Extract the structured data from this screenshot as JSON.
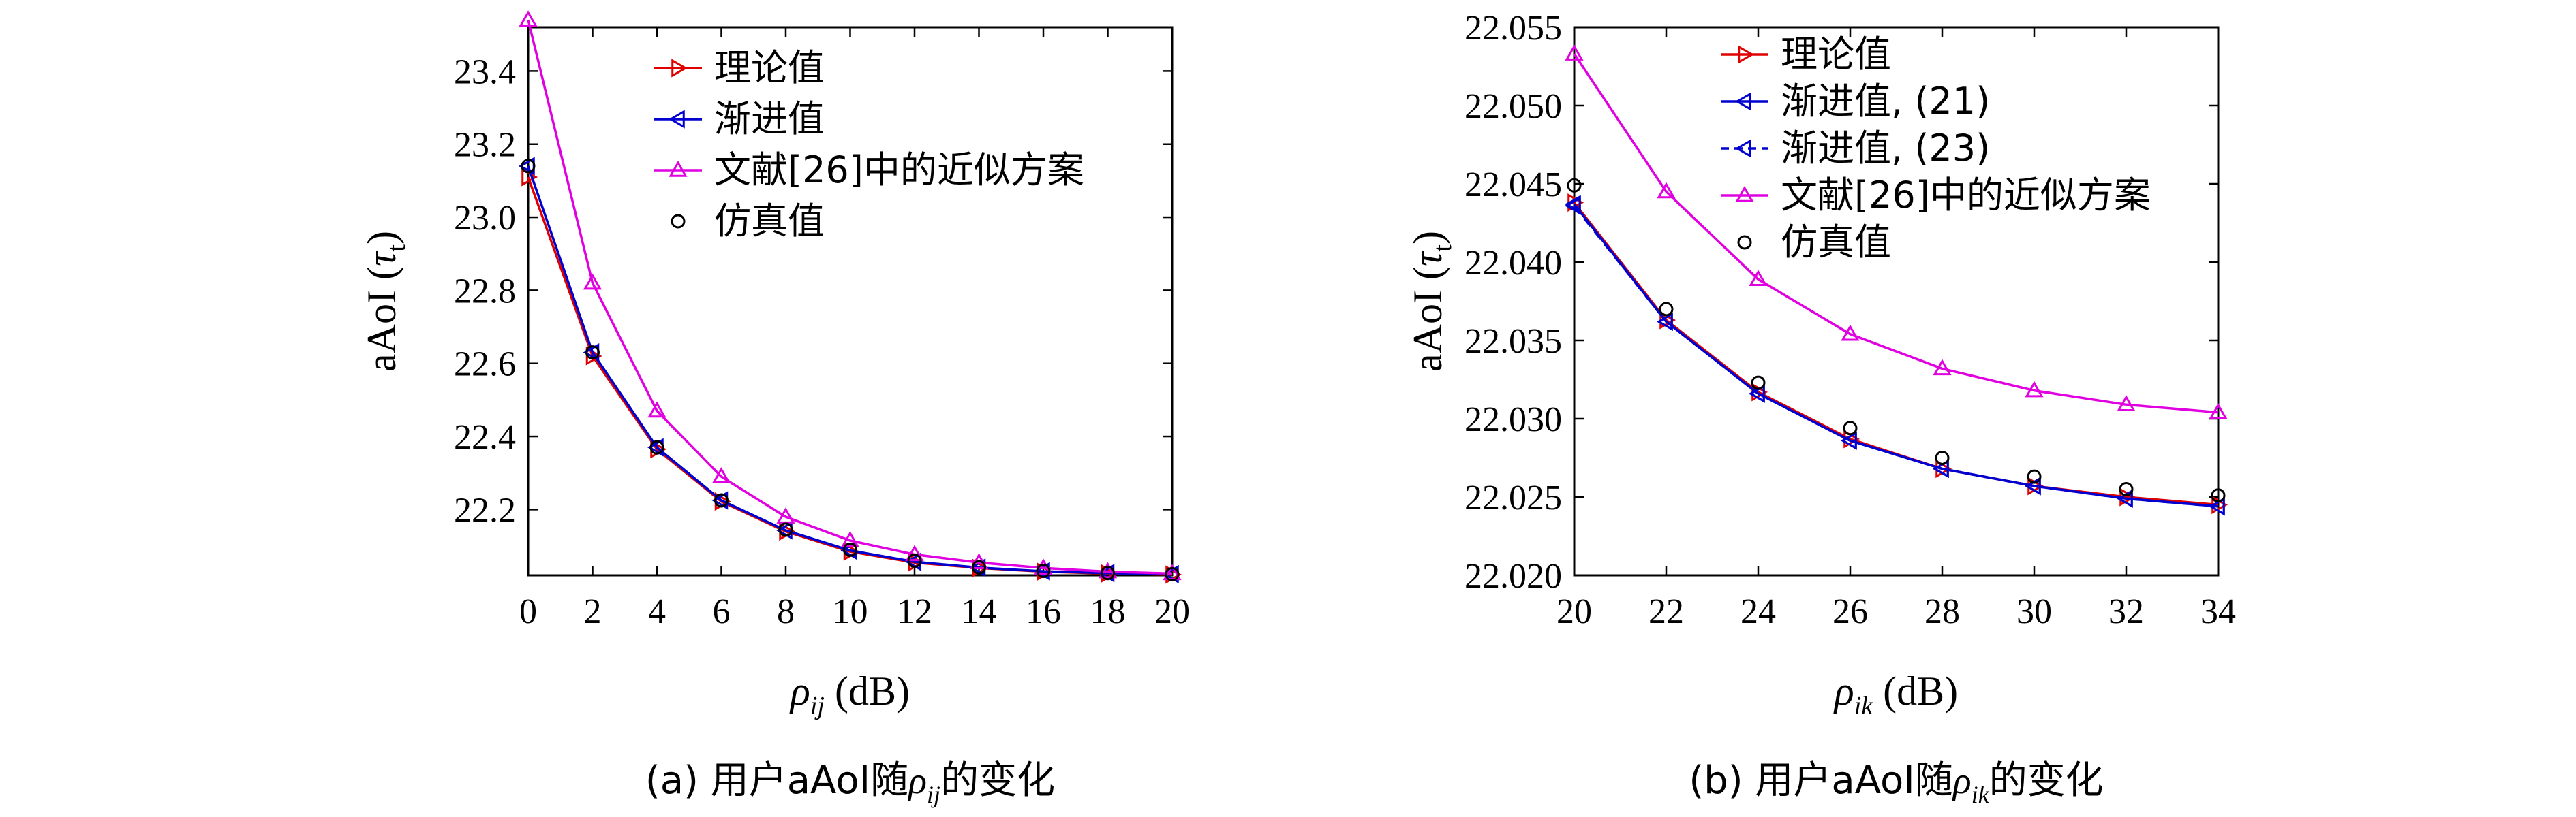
{
  "colors": {
    "theory": "#e00000",
    "asymptotic": "#0000d0",
    "reference": "#e000e0",
    "simulation": "#000000"
  },
  "chart_data": [
    {
      "type": "line",
      "caption_pre": "(a) 用户aAoI随",
      "caption_sym": "ρ",
      "caption_sub": "ij",
      "caption_post": "的变化",
      "xlabel_sym": "ρ",
      "xlabel_sub": "ij",
      "xlabel_unit": " (dB)",
      "ylabel_main": "aAoI (",
      "ylabel_sym": "τ",
      "ylabel_sub": "t",
      "ylabel_end": ")",
      "xlim": [
        0,
        20
      ],
      "ylim": [
        22.02,
        23.52
      ],
      "xticks": [
        0,
        2,
        4,
        6,
        8,
        10,
        12,
        14,
        16,
        18,
        20
      ],
      "yticks": [
        22.2,
        22.4,
        22.6,
        22.8,
        23.0,
        23.2,
        23.4
      ],
      "ytick_labels": [
        "22.2",
        "22.4",
        "22.6",
        "22.8",
        "23.0",
        "23.2",
        "23.4"
      ],
      "legend": [
        {
          "name": "理论值",
          "style": "theory"
        },
        {
          "name": "渐进值",
          "style": "asymptotic"
        },
        {
          "name": "文献[26]中的近似方案",
          "style": "reference"
        },
        {
          "name": "仿真值",
          "style": "simulation"
        }
      ],
      "series": [
        {
          "name": "理论值",
          "style": "theory",
          "x": [
            0,
            2,
            4,
            6,
            8,
            10,
            12,
            14,
            16,
            18,
            20
          ],
          "y": [
            23.11,
            22.62,
            22.365,
            22.222,
            22.14,
            22.085,
            22.055,
            22.04,
            22.03,
            22.025,
            22.022
          ]
        },
        {
          "name": "渐进值",
          "style": "asymptotic",
          "x": [
            0,
            2,
            4,
            6,
            8,
            10,
            12,
            14,
            16,
            18,
            20
          ],
          "y": [
            23.14,
            22.63,
            22.37,
            22.225,
            22.143,
            22.088,
            22.057,
            22.041,
            22.031,
            22.026,
            22.023
          ]
        },
        {
          "name": "文献[26]中的近似方案",
          "style": "reference",
          "x": [
            0,
            2,
            4,
            6,
            8,
            10,
            12,
            14,
            16,
            18,
            20
          ],
          "y": [
            23.54,
            22.82,
            22.47,
            22.29,
            22.18,
            22.115,
            22.077,
            22.055,
            22.04,
            22.03,
            22.025
          ]
        },
        {
          "name": "仿真值",
          "style": "simulation",
          "x": [
            0,
            2,
            4,
            6,
            8,
            10,
            12,
            14,
            16,
            18,
            20
          ],
          "y": [
            23.14,
            22.63,
            22.37,
            22.225,
            22.145,
            22.09,
            22.06,
            22.042,
            22.032,
            22.026,
            22.023
          ]
        }
      ]
    },
    {
      "type": "line",
      "caption_pre": "(b) 用户aAoI随",
      "caption_sym": "ρ",
      "caption_sub": "ik",
      "caption_post": "的变化",
      "xlabel_sym": "ρ",
      "xlabel_sub": "ik",
      "xlabel_unit": " (dB)",
      "ylabel_main": "aAoI (",
      "ylabel_sym": "τ",
      "ylabel_sub": "t",
      "ylabel_end": ")",
      "xlim": [
        20,
        34
      ],
      "ylim": [
        22.02,
        22.055
      ],
      "xticks": [
        20,
        22,
        24,
        26,
        28,
        30,
        32,
        34
      ],
      "yticks": [
        22.02,
        22.025,
        22.03,
        22.035,
        22.04,
        22.045,
        22.05,
        22.055
      ],
      "ytick_labels": [
        "22.020",
        "22.025",
        "22.030",
        "22.035",
        "22.040",
        "22.045",
        "22.050",
        "22.055"
      ],
      "legend": [
        {
          "name": "理论值",
          "style": "theory"
        },
        {
          "name": "渐进值, (21)",
          "style": "asymptotic"
        },
        {
          "name": "渐进值, (23)",
          "style": "asymptotic-dashed"
        },
        {
          "name": "文献[26]中的近似方案",
          "style": "reference"
        },
        {
          "name": "仿真值",
          "style": "simulation"
        }
      ],
      "series": [
        {
          "name": "理论值",
          "style": "theory",
          "x": [
            20,
            22,
            24,
            26,
            28,
            30,
            32,
            34
          ],
          "y": [
            22.0438,
            22.0363,
            22.0317,
            22.0287,
            22.0268,
            22.0257,
            22.025,
            22.0245
          ]
        },
        {
          "name": "渐进值, (21)",
          "style": "asymptotic",
          "x": [
            20,
            22,
            24,
            26,
            28,
            30,
            32,
            34
          ],
          "y": [
            22.0437,
            22.0362,
            22.0316,
            22.0286,
            22.0268,
            22.0257,
            22.0249,
            22.0244
          ]
        },
        {
          "name": "渐进值, (23)",
          "style": "asymptotic-dashed",
          "x": [
            20,
            22,
            24,
            26,
            28,
            30,
            32,
            34
          ],
          "y": [
            22.0436,
            22.0362,
            22.0316,
            22.0286,
            22.0268,
            22.0257,
            22.0249,
            22.0244
          ]
        },
        {
          "name": "文献[26]中的近似方案",
          "style": "reference",
          "x": [
            20,
            22,
            24,
            26,
            28,
            30,
            32,
            34
          ],
          "y": [
            22.0533,
            22.0445,
            22.0389,
            22.0354,
            22.0332,
            22.0318,
            22.0309,
            22.0304
          ]
        },
        {
          "name": "仿真值",
          "style": "simulation",
          "x": [
            20,
            22,
            24,
            26,
            28,
            30,
            32,
            34
          ],
          "y": [
            22.0449,
            22.037,
            22.0323,
            22.0294,
            22.0275,
            22.0263,
            22.0255,
            22.0251
          ]
        }
      ]
    }
  ]
}
